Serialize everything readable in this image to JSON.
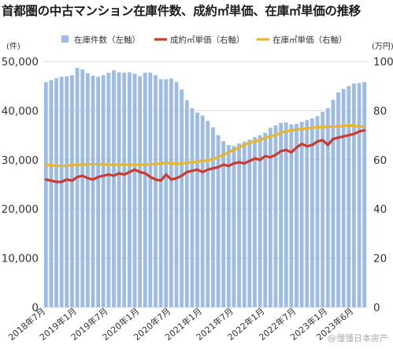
{
  "chart_data": {
    "type": "bar",
    "title": "首都圏の中古マンション在庫件数、成約㎡単価、在庫㎡単価の推移",
    "left_axis_unit": "(件)",
    "right_axis_unit": "(万円)",
    "ylim_left": [
      0,
      50000
    ],
    "ylim_right": [
      0,
      100
    ],
    "left_ticks": [
      "0",
      "10,000",
      "20,000",
      "30,000",
      "40,000",
      "50,000"
    ],
    "right_ticks": [
      "0",
      "20",
      "40",
      "60",
      "80",
      "100"
    ],
    "x_tick_labels": [
      "2018年7月",
      "2019年1月",
      "2019年7月",
      "2020年1月",
      "2020年7月",
      "2021年1月",
      "2021年7月",
      "2022年1月",
      "2022年7月",
      "2023年1月",
      "2023年6月"
    ],
    "x_tick_indices": [
      0,
      6,
      12,
      18,
      24,
      30,
      36,
      42,
      48,
      54,
      59
    ],
    "legend_position": "top",
    "grid": true,
    "colors": {
      "bar": "#9dbbe7",
      "sold_price": "#cc3b2b",
      "stock_price": "#e9b52a"
    },
    "series": [
      {
        "name": "在庫件数（左軸）",
        "kind": "bar",
        "axis": "left",
        "values": [
          45800,
          46200,
          46600,
          46900,
          47000,
          47200,
          48700,
          48400,
          47600,
          47100,
          46900,
          47200,
          47700,
          48200,
          47800,
          47700,
          47800,
          47500,
          47000,
          47700,
          47700,
          47200,
          46400,
          46400,
          46500,
          45800,
          44300,
          42100,
          40500,
          39600,
          39000,
          37900,
          36600,
          35000,
          33800,
          33000,
          32800,
          33300,
          33700,
          34100,
          34600,
          35000,
          35500,
          36500,
          37000,
          37500,
          37600,
          37200,
          37300,
          37700,
          38100,
          38400,
          38900,
          39700,
          40500,
          42200,
          43700,
          44400,
          45000,
          45500,
          45600,
          45800
        ]
      },
      {
        "name": "成約㎡単価（右軸）",
        "kind": "line",
        "axis": "right",
        "values": [
          52.0,
          51.5,
          51.0,
          51.0,
          52.0,
          51.5,
          53.0,
          53.5,
          52.5,
          52.0,
          53.0,
          53.5,
          54.0,
          53.5,
          54.5,
          54.0,
          55.0,
          56.0,
          55.0,
          54.5,
          53.0,
          52.0,
          51.5,
          54.0,
          52.0,
          52.5,
          53.5,
          55.0,
          55.5,
          56.0,
          55.0,
          56.0,
          56.5,
          57.0,
          58.0,
          57.5,
          58.5,
          59.0,
          58.5,
          59.5,
          60.5,
          60.0,
          61.5,
          61.0,
          62.0,
          63.5,
          64.0,
          63.0,
          65.0,
          66.5,
          65.5,
          66.0,
          67.5,
          68.0,
          66.0,
          68.5,
          69.0,
          69.5,
          70.0,
          70.5,
          71.5,
          72.0
        ]
      },
      {
        "name": "在庫㎡単価（右軸）",
        "kind": "line",
        "axis": "right",
        "values": [
          58.0,
          57.8,
          57.6,
          57.5,
          57.6,
          57.8,
          58.0,
          58.0,
          58.1,
          58.2,
          58.2,
          58.1,
          58.0,
          58.0,
          58.0,
          58.0,
          58.0,
          58.0,
          58.0,
          58.0,
          58.2,
          58.3,
          58.5,
          58.8,
          58.5,
          58.3,
          58.5,
          58.8,
          59.0,
          59.2,
          59.5,
          59.8,
          60.2,
          61.0,
          62.0,
          63.0,
          64.0,
          65.0,
          66.0,
          67.0,
          67.5,
          68.0,
          69.0,
          69.5,
          70.0,
          71.0,
          71.5,
          72.0,
          72.3,
          72.5,
          72.8,
          73.0,
          73.2,
          73.3,
          73.5,
          73.5,
          73.5,
          73.8,
          74.0,
          73.8,
          73.5,
          73.5
        ]
      }
    ]
  },
  "watermark": "@懂懂日本房产"
}
